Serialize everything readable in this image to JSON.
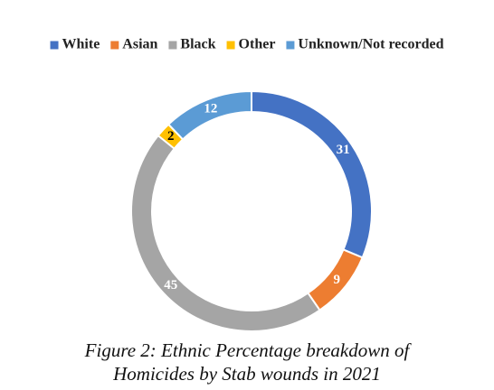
{
  "chart_data": {
    "type": "donut",
    "categories": [
      "White",
      "Asian",
      "Black",
      "Other",
      "Unknown/Not recorded"
    ],
    "values": [
      31,
      9,
      45,
      2,
      12
    ],
    "colors": [
      "#4472c4",
      "#ed7d31",
      "#a5a5a5",
      "#ffc000",
      "#5b9bd5"
    ],
    "legend": "top",
    "caption": [
      "Figure 2: Ethnic Percentage breakdown of",
      "Homicides by Stab wounds in 2021"
    ]
  }
}
